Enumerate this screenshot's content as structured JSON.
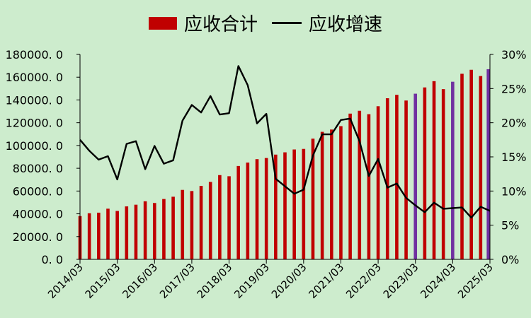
{
  "chart_data": {
    "type": "bar+line",
    "colors": {
      "bar": "#c00000",
      "bar_highlight": "#7030a0",
      "line": "#000000",
      "background": "#cdeccd"
    },
    "legend": {
      "bar_label": "应收合计",
      "line_label": "应收增速",
      "position": "top"
    },
    "left_axis": {
      "min": 0,
      "max": 180000,
      "step": 20000,
      "tick_labels": [
        "0. 0",
        "20000. 0",
        "40000. 0",
        "60000. 0",
        "80000. 0",
        "100000. 0",
        "120000. 0",
        "140000. 0",
        "160000. 0",
        "180000. 0"
      ]
    },
    "right_axis": {
      "min": 0,
      "max": 30,
      "step": 5,
      "tick_labels": [
        "0%",
        "5%",
        "10%",
        "15%",
        "20%",
        "25%",
        "30%"
      ]
    },
    "x_labels": [
      "2014/03",
      "2015/03",
      "2016/03",
      "2017/03",
      "2018/03",
      "2019/03",
      "2020/03",
      "2021/03",
      "2022/03",
      "2023/03",
      "2024/03",
      "2025/03"
    ],
    "x_label_every": 4,
    "periods": [
      "2014/03",
      "2014/06",
      "2014/09",
      "2014/12",
      "2015/03",
      "2015/06",
      "2015/09",
      "2015/12",
      "2016/03",
      "2016/06",
      "2016/09",
      "2016/12",
      "2017/03",
      "2017/06",
      "2017/09",
      "2017/12",
      "2018/03",
      "2018/06",
      "2018/09",
      "2018/12",
      "2019/03",
      "2019/06",
      "2019/09",
      "2019/12",
      "2020/03",
      "2020/06",
      "2020/09",
      "2020/12",
      "2021/03",
      "2021/06",
      "2021/09",
      "2021/12",
      "2022/03",
      "2022/06",
      "2022/09",
      "2022/12",
      "2023/03",
      "2023/06",
      "2023/09",
      "2023/12",
      "2024/03",
      "2024/06",
      "2024/09",
      "2024/12",
      "2025/03"
    ],
    "bar_values": [
      38000,
      40500,
      41000,
      44500,
      42500,
      46500,
      48000,
      51000,
      49500,
      53000,
      55000,
      61000,
      60000,
      64500,
      68000,
      74000,
      73000,
      82000,
      85000,
      88000,
      89000,
      92000,
      94000,
      96500,
      97000,
      106000,
      112000,
      114000,
      117000,
      128000,
      130500,
      127500,
      134500,
      141500,
      144500,
      139500,
      145500,
      151000,
      156500,
      149500,
      156000,
      163000,
      166500,
      161000,
      167000
    ],
    "highlight_indices": [
      36,
      40,
      44
    ],
    "growth_rates": [
      17.5,
      15.9,
      14.6,
      15.1,
      11.7,
      16.9,
      17.3,
      13.2,
      16.6,
      14.0,
      14.5,
      20.3,
      22.6,
      21.5,
      23.9,
      21.2,
      21.4,
      28.3,
      25.5,
      19.9,
      21.3,
      11.8,
      10.7,
      9.6,
      10.2,
      15.2,
      18.3,
      18.3,
      20.4,
      20.6,
      17.3,
      12.2,
      14.7,
      10.5,
      11.1,
      9.0,
      7.9,
      6.9,
      8.3,
      7.4,
      7.5,
      7.6,
      6.1,
      7.7,
      7.1
    ]
  }
}
